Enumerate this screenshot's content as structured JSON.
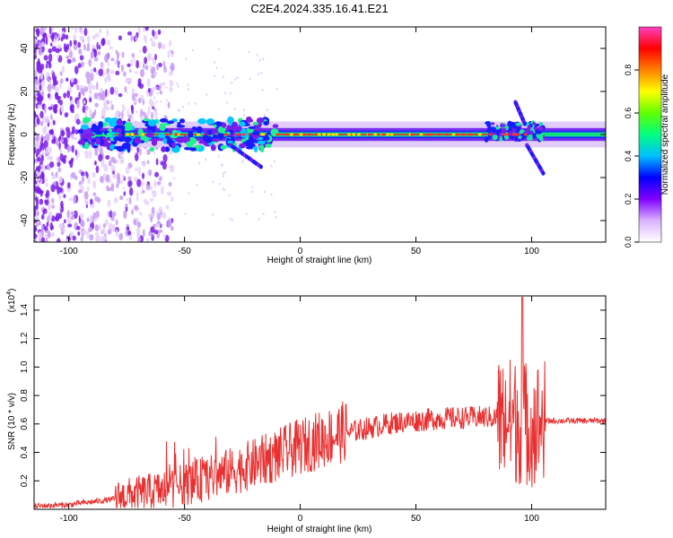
{
  "title": "C2E4.2024.335.16.41.E21",
  "chart_data": [
    {
      "type": "heatmap",
      "xlabel": "Height of straight line (km)",
      "ylabel": "Frequency (Hz)",
      "xlim": [
        -115,
        132
      ],
      "ylim": [
        -50,
        50
      ],
      "xticks": [
        -100,
        -50,
        0,
        50,
        100
      ],
      "yticks": [
        -40,
        -20,
        0,
        20,
        40
      ],
      "colorbar": {
        "label": "Normalized spectral amplitude",
        "range": [
          0,
          1
        ],
        "ticks": [
          "0.0",
          "0.2",
          "0.4",
          "0.6",
          "0.8"
        ],
        "colors": [
          "#ffffff",
          "#d9b3ff",
          "#8000ff",
          "#0000ff",
          "#00c0ff",
          "#00ff80",
          "#60ff00",
          "#ffff00",
          "#ff8000",
          "#ff0000",
          "#ff40c0"
        ]
      },
      "band": {
        "center_hz": 0,
        "strong_x": [
          -100,
          100
        ]
      },
      "spurs": [
        {
          "x": [
            -30,
            -17
          ],
          "y": [
            -5,
            -15
          ]
        },
        {
          "x": [
            98,
            105
          ],
          "y": [
            -5,
            -18
          ]
        },
        {
          "x": [
            93,
            97
          ],
          "y": [
            15,
            5
          ]
        }
      ]
    },
    {
      "type": "line",
      "xlabel": "Height of straight line (km)",
      "ylabel": "SNR (10 * v/v)",
      "multiplier": "(x10",
      "multiplier_exp": "4",
      "xlim": [
        -115,
        132
      ],
      "ylim": [
        0,
        1.5
      ],
      "xticks": [
        -100,
        -50,
        0,
        50,
        100
      ],
      "yticks": [
        "0.2",
        "0.4",
        "0.6",
        "0.8",
        "1.0",
        "1.2",
        "1.4"
      ],
      "color": "#e83030",
      "trend_x": [
        -115,
        -100,
        -80,
        -60,
        -40,
        -20,
        0,
        20,
        40,
        60,
        80,
        90,
        100,
        106,
        110,
        132
      ],
      "trend_y": [
        0.02,
        0.03,
        0.07,
        0.12,
        0.2,
        0.3,
        0.42,
        0.53,
        0.6,
        0.63,
        0.64,
        0.63,
        0.6,
        0.62,
        0.62,
        0.62
      ],
      "peak_x": 96,
      "peak_y": 1.49
    }
  ]
}
